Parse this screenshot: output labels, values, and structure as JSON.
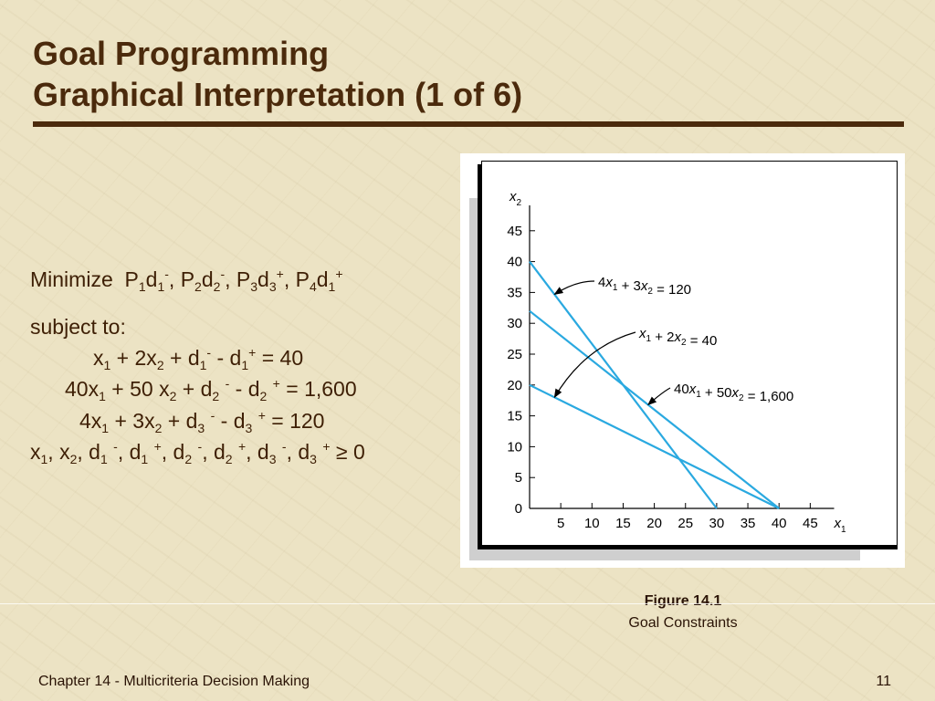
{
  "slide": {
    "title_line1": "Goal Programming",
    "title_line2": "Graphical Interpretation (1 of 6)",
    "footer_left": "Chapter 14 - Multicriteria Decision Making",
    "page_number": "11"
  },
  "math": {
    "objective_label": "Minimize",
    "subject_to": "subject to:",
    "nonneg_rhs": "0"
  },
  "figure": {
    "caption_title": "Figure 14.1",
    "caption_subtitle": "Goal Constraints"
  },
  "colors": {
    "title": "#4b2a0c",
    "line": "#2aa9e0",
    "background": "#ece3c4"
  },
  "chart_data": {
    "type": "line",
    "xlabel": "x1",
    "ylabel": "x2",
    "xlim": [
      0,
      50
    ],
    "ylim": [
      0,
      50
    ],
    "x_ticks": [
      5,
      10,
      15,
      20,
      25,
      30,
      35,
      40,
      45
    ],
    "y_ticks": [
      0,
      5,
      10,
      15,
      20,
      25,
      30,
      35,
      40,
      45
    ],
    "series": [
      {
        "name": "4x1 + 3x2 = 120",
        "x": [
          0,
          30
        ],
        "y": [
          40,
          0
        ]
      },
      {
        "name": "x1 + 2x2 = 40",
        "x": [
          0,
          40
        ],
        "y": [
          20,
          0
        ]
      },
      {
        "name": "40x1 + 50x2 = 1,600",
        "x": [
          0,
          40
        ],
        "y": [
          32,
          0
        ]
      }
    ],
    "annotations": [
      {
        "text": "4x1 + 3x2 = 120",
        "points_to": [
          4,
          34.7
        ]
      },
      {
        "text": "x1 + 2x2 = 40",
        "points_to": [
          4,
          18
        ]
      },
      {
        "text": "40x1 + 50x2 = 1,600",
        "points_to": [
          19,
          16.8
        ]
      }
    ]
  }
}
